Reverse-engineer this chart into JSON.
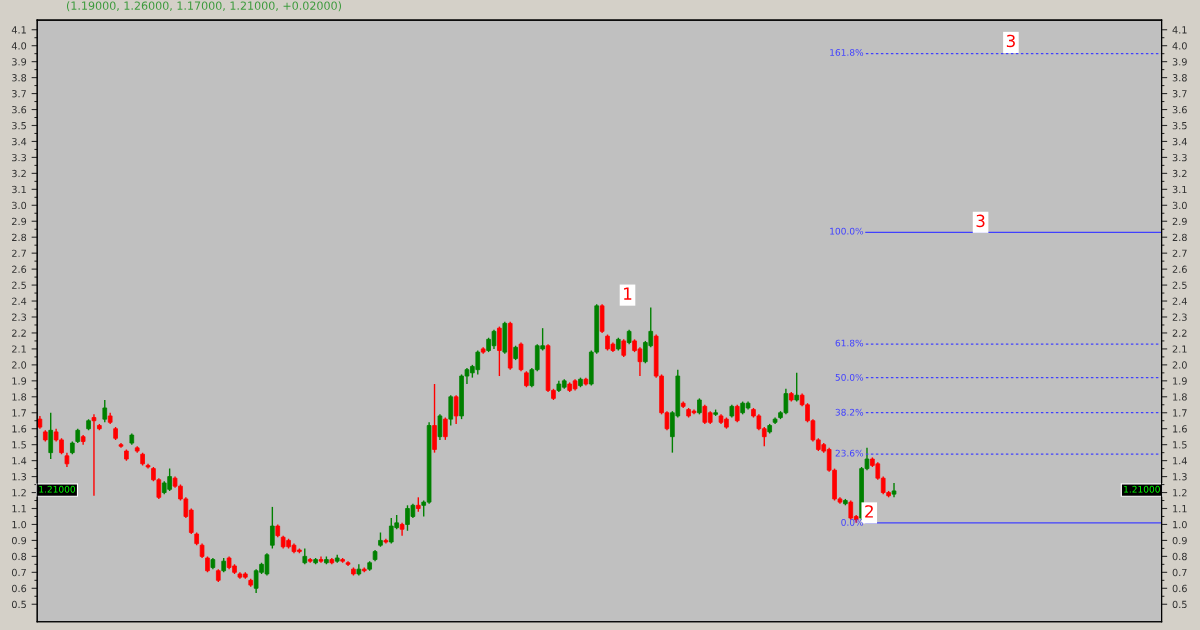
{
  "chart_data": {
    "type": "candlestick",
    "title": "(1.19000, 1.26000, 1.17000, 1.21000, +0.02000)",
    "categories": [
      null,
      null,
      null,
      null,
      null,
      null,
      null,
      null,
      null,
      null,
      null,
      null,
      null,
      null,
      null,
      null,
      null,
      null,
      null,
      null,
      null,
      null,
      null,
      null,
      null,
      null,
      null,
      null,
      null,
      null,
      null,
      null,
      null,
      null,
      null,
      null,
      null,
      null,
      null,
      null,
      null,
      null,
      null,
      null,
      null,
      null,
      null,
      null,
      null,
      null,
      null,
      null,
      null,
      null,
      null,
      null,
      null,
      null,
      null,
      null,
      null,
      null,
      null,
      null,
      null,
      null,
      null,
      null,
      null,
      null,
      null,
      null,
      null,
      null,
      null,
      null,
      null,
      null,
      null,
      null,
      null,
      null,
      null,
      null,
      null,
      null,
      null,
      null,
      null,
      null,
      null,
      null,
      null,
      null,
      null,
      null,
      null,
      null,
      null,
      null,
      null,
      null,
      null,
      null,
      null,
      null,
      null,
      null,
      null,
      null,
      null,
      null,
      null,
      null,
      null,
      null,
      null,
      null,
      null,
      null,
      null,
      null,
      null,
      null,
      null,
      null,
      null,
      null,
      null,
      null,
      null,
      null,
      null,
      null,
      null,
      null,
      null,
      null,
      null,
      null,
      null,
      null,
      null,
      null,
      null,
      null,
      null,
      null,
      null,
      null,
      null,
      null,
      null,
      null,
      null,
      null,
      null,
      null,
      null,
      null,
      null,
      null,
      null,
      null,
      null,
      null,
      null,
      null,
      null,
      null,
      null,
      null,
      null,
      null,
      null,
      null,
      null,
      null,
      null,
      null,
      null,
      null,
      null,
      null,
      null,
      null,
      null,
      null,
      null,
      null,
      null,
      null,
      null,
      null,
      null,
      null,
      null,
      null,
      null,
      null,
      null,
      null,
      null,
      null,
      null,
      null,
      null,
      null
    ],
    "ohlc": [
      [
        1.66,
        1.68,
        1.6,
        1.61
      ],
      [
        1.58,
        1.59,
        1.52,
        1.53
      ],
      [
        1.45,
        1.7,
        1.41,
        1.59
      ],
      [
        1.58,
        1.6,
        1.52,
        1.53
      ],
      [
        1.53,
        1.54,
        1.44,
        1.45
      ],
      [
        1.43,
        1.45,
        1.36,
        1.38
      ],
      [
        1.45,
        1.52,
        1.44,
        1.51
      ],
      [
        1.52,
        1.6,
        1.51,
        1.59
      ],
      [
        1.55,
        1.56,
        1.5,
        1.52
      ],
      [
        1.6,
        1.66,
        1.59,
        1.65
      ],
      [
        1.67,
        1.69,
        1.18,
        1.65
      ],
      [
        1.62,
        1.63,
        1.59,
        1.6
      ],
      [
        1.66,
        1.78,
        1.64,
        1.73
      ],
      [
        1.68,
        1.7,
        1.63,
        1.64
      ],
      [
        1.6,
        1.61,
        1.53,
        1.54
      ],
      [
        1.5,
        1.51,
        1.48,
        1.49
      ],
      [
        1.46,
        1.47,
        1.4,
        1.41
      ],
      [
        1.51,
        1.57,
        1.5,
        1.56
      ],
      [
        1.48,
        1.49,
        1.45,
        1.46
      ],
      [
        1.44,
        1.45,
        1.37,
        1.38
      ],
      [
        1.37,
        1.38,
        1.35,
        1.36
      ],
      [
        1.35,
        1.36,
        1.27,
        1.28
      ],
      [
        1.28,
        1.29,
        1.16,
        1.17
      ],
      [
        1.2,
        1.27,
        1.19,
        1.26
      ],
      [
        1.22,
        1.35,
        1.21,
        1.3
      ],
      [
        1.29,
        1.3,
        1.23,
        1.24
      ],
      [
        1.24,
        1.25,
        1.15,
        1.16
      ],
      [
        1.16,
        1.17,
        1.04,
        1.05
      ],
      [
        1.09,
        1.1,
        0.94,
        0.95
      ],
      [
        0.94,
        0.95,
        0.87,
        0.88
      ],
      [
        0.87,
        0.88,
        0.79,
        0.8
      ],
      [
        0.79,
        0.8,
        0.7,
        0.71
      ],
      [
        0.73,
        0.79,
        0.72,
        0.78
      ],
      [
        0.71,
        0.72,
        0.64,
        0.65
      ],
      [
        0.71,
        0.79,
        0.7,
        0.77
      ],
      [
        0.79,
        0.8,
        0.72,
        0.73
      ],
      [
        0.74,
        0.75,
        0.69,
        0.7
      ],
      [
        0.69,
        0.7,
        0.66,
        0.67
      ],
      [
        0.69,
        0.7,
        0.66,
        0.67
      ],
      [
        0.65,
        0.66,
        0.61,
        0.62
      ],
      [
        0.6,
        0.72,
        0.57,
        0.71
      ],
      [
        0.7,
        0.76,
        0.69,
        0.75
      ],
      [
        0.69,
        0.82,
        0.68,
        0.81
      ],
      [
        0.87,
        1.11,
        0.85,
        0.99
      ],
      [
        0.99,
        1.0,
        0.92,
        0.93
      ],
      [
        0.92,
        0.93,
        0.85,
        0.86
      ],
      [
        0.9,
        0.91,
        0.85,
        0.86
      ],
      [
        0.87,
        0.88,
        0.82,
        0.83
      ],
      [
        0.84,
        0.85,
        0.82,
        0.83
      ],
      [
        0.76,
        0.85,
        0.75,
        0.8
      ],
      [
        0.78,
        0.79,
        0.76,
        0.77
      ],
      [
        0.76,
        0.79,
        0.75,
        0.78
      ],
      [
        0.78,
        0.8,
        0.76,
        0.77
      ],
      [
        0.76,
        0.8,
        0.75,
        0.78
      ],
      [
        0.78,
        0.79,
        0.75,
        0.76
      ],
      [
        0.77,
        0.81,
        0.76,
        0.79
      ],
      [
        0.78,
        0.79,
        0.76,
        0.77
      ],
      [
        0.76,
        0.77,
        0.74,
        0.75
      ],
      [
        0.72,
        0.73,
        0.68,
        0.69
      ],
      [
        0.69,
        0.75,
        0.68,
        0.72
      ],
      [
        0.72,
        0.73,
        0.7,
        0.71
      ],
      [
        0.72,
        0.77,
        0.71,
        0.76
      ],
      [
        0.78,
        0.84,
        0.77,
        0.83
      ],
      [
        0.87,
        0.95,
        0.86,
        0.9
      ],
      [
        0.9,
        0.91,
        0.88,
        0.89
      ],
      [
        0.89,
        1.04,
        0.88,
        0.99
      ],
      [
        0.98,
        1.06,
        0.97,
        1.01
      ],
      [
        1.0,
        1.01,
        0.93,
        0.97
      ],
      [
        1.0,
        1.12,
        0.96,
        1.1
      ],
      [
        1.05,
        1.13,
        1.04,
        1.12
      ],
      [
        1.12,
        1.17,
        1.08,
        1.1
      ],
      [
        1.12,
        1.15,
        1.05,
        1.14
      ],
      [
        1.14,
        1.64,
        1.13,
        1.62
      ],
      [
        1.62,
        1.88,
        1.45,
        1.47
      ],
      [
        1.55,
        1.69,
        1.53,
        1.68
      ],
      [
        1.66,
        1.67,
        1.53,
        1.55
      ],
      [
        1.66,
        1.81,
        1.62,
        1.8
      ],
      [
        1.8,
        1.81,
        1.63,
        1.68
      ],
      [
        1.68,
        1.94,
        1.66,
        1.93
      ],
      [
        1.93,
        1.98,
        1.88,
        1.97
      ],
      [
        1.95,
        2.0,
        1.92,
        1.99
      ],
      [
        1.97,
        2.09,
        1.94,
        2.08
      ],
      [
        2.1,
        2.11,
        2.07,
        2.08
      ],
      [
        2.09,
        2.17,
        2.08,
        2.16
      ],
      [
        2.12,
        2.22,
        2.1,
        2.21
      ],
      [
        2.23,
        2.24,
        1.93,
        2.09
      ],
      [
        2.08,
        2.27,
        2.07,
        2.26
      ],
      [
        2.26,
        2.27,
        1.97,
        1.98
      ],
      [
        2.04,
        2.12,
        2.03,
        2.11
      ],
      [
        2.13,
        2.14,
        1.96,
        1.97
      ],
      [
        1.95,
        1.96,
        1.86,
        1.87
      ],
      [
        1.87,
        1.98,
        1.86,
        1.97
      ],
      [
        1.97,
        2.13,
        1.96,
        2.12
      ],
      [
        2.1,
        2.23,
        2.09,
        2.12
      ],
      [
        2.12,
        2.13,
        1.83,
        1.84
      ],
      [
        1.84,
        1.85,
        1.78,
        1.79
      ],
      [
        1.84,
        1.9,
        1.83,
        1.88
      ],
      [
        1.86,
        1.91,
        1.85,
        1.9
      ],
      [
        1.88,
        1.89,
        1.83,
        1.84
      ],
      [
        1.9,
        1.91,
        1.84,
        1.85
      ],
      [
        1.87,
        1.92,
        1.86,
        1.91
      ],
      [
        1.91,
        1.92,
        1.87,
        1.88
      ],
      [
        1.88,
        2.09,
        1.87,
        2.08
      ],
      [
        2.08,
        2.38,
        2.07,
        2.37
      ],
      [
        2.37,
        2.38,
        2.2,
        2.21
      ],
      [
        2.18,
        2.19,
        2.09,
        2.1
      ],
      [
        2.13,
        2.14,
        2.08,
        2.09
      ],
      [
        2.1,
        2.17,
        2.09,
        2.16
      ],
      [
        2.15,
        2.16,
        2.05,
        2.06
      ],
      [
        2.14,
        2.22,
        2.13,
        2.21
      ],
      [
        2.15,
        2.16,
        2.08,
        2.09
      ],
      [
        2.1,
        2.11,
        1.93,
        2.02
      ],
      [
        2.02,
        2.15,
        2.01,
        2.14
      ],
      [
        2.12,
        2.36,
        2.11,
        2.21
      ],
      [
        2.18,
        2.19,
        1.92,
        1.93
      ],
      [
        1.93,
        1.94,
        1.69,
        1.7
      ],
      [
        1.7,
        1.71,
        1.59,
        1.6
      ],
      [
        1.55,
        1.71,
        1.45,
        1.7
      ],
      [
        1.68,
        1.97,
        1.67,
        1.93
      ],
      [
        1.76,
        1.77,
        1.73,
        1.74
      ],
      [
        1.72,
        1.73,
        1.67,
        1.68
      ],
      [
        1.71,
        1.72,
        1.69,
        1.7
      ],
      [
        1.7,
        1.79,
        1.69,
        1.78
      ],
      [
        1.74,
        1.75,
        1.63,
        1.64
      ],
      [
        1.7,
        1.71,
        1.63,
        1.64
      ],
      [
        1.69,
        1.72,
        1.68,
        1.7
      ],
      [
        1.68,
        1.69,
        1.63,
        1.64
      ],
      [
        1.66,
        1.67,
        1.6,
        1.61
      ],
      [
        1.68,
        1.75,
        1.67,
        1.74
      ],
      [
        1.74,
        1.75,
        1.64,
        1.65
      ],
      [
        1.7,
        1.77,
        1.69,
        1.76
      ],
      [
        1.73,
        1.77,
        1.72,
        1.76
      ],
      [
        1.72,
        1.73,
        1.67,
        1.68
      ],
      [
        1.68,
        1.69,
        1.59,
        1.6
      ],
      [
        1.6,
        1.61,
        1.49,
        1.55
      ],
      [
        1.58,
        1.63,
        1.57,
        1.62
      ],
      [
        1.64,
        1.67,
        1.63,
        1.66
      ],
      [
        1.67,
        1.71,
        1.66,
        1.7
      ],
      [
        1.7,
        1.85,
        1.69,
        1.82
      ],
      [
        1.82,
        1.83,
        1.77,
        1.78
      ],
      [
        1.78,
        1.95,
        1.77,
        1.81
      ],
      [
        1.81,
        1.82,
        1.74,
        1.75
      ],
      [
        1.75,
        1.76,
        1.64,
        1.65
      ],
      [
        1.65,
        1.66,
        1.52,
        1.53
      ],
      [
        1.53,
        1.54,
        1.46,
        1.47
      ],
      [
        1.5,
        1.51,
        1.45,
        1.46
      ],
      [
        1.47,
        1.48,
        1.33,
        1.34
      ],
      [
        1.34,
        1.35,
        1.15,
        1.16
      ],
      [
        1.16,
        1.17,
        1.13,
        1.14
      ],
      [
        1.13,
        1.16,
        1.12,
        1.15
      ],
      [
        1.14,
        1.15,
        1.03,
        1.04
      ],
      [
        1.05,
        1.06,
        1.01,
        1.03
      ],
      [
        1.04,
        1.36,
        1.03,
        1.35
      ],
      [
        1.35,
        1.48,
        1.34,
        1.41
      ],
      [
        1.41,
        1.42,
        1.36,
        1.37
      ],
      [
        1.38,
        1.39,
        1.28,
        1.29
      ],
      [
        1.29,
        1.3,
        1.19,
        1.2
      ],
      [
        1.2,
        1.21,
        1.17,
        1.18
      ],
      [
        1.19,
        1.26,
        1.17,
        1.21
      ],
      null,
      null,
      null,
      null,
      null,
      null,
      null,
      null,
      null,
      null,
      null,
      null,
      null,
      null,
      null,
      null,
      null,
      null,
      null,
      null,
      null,
      null,
      null,
      null,
      null,
      null,
      null,
      null,
      null,
      null,
      null,
      null,
      null,
      null,
      null,
      null,
      null,
      null,
      null,
      null,
      null,
      null,
      null,
      null,
      null,
      null,
      null,
      null,
      null
    ],
    "colors": [
      "#ff0000",
      "#ff0000",
      "#008000",
      "#ff0000",
      "#ff0000",
      "#ff0000",
      "#008000",
      "#008000",
      "#ff0000",
      "#008000",
      "#ff0000",
      "#ff0000",
      "#008000",
      "#ff0000",
      "#ff0000",
      "#ff0000",
      "#ff0000",
      "#008000",
      "#ff0000",
      "#ff0000",
      "#ff0000",
      "#ff0000",
      "#ff0000",
      "#008000",
      "#008000",
      "#ff0000",
      "#ff0000",
      "#ff0000",
      "#ff0000",
      "#ff0000",
      "#ff0000",
      "#ff0000",
      "#008000",
      "#ff0000",
      "#008000",
      "#ff0000",
      "#ff0000",
      "#ff0000",
      "#ff0000",
      "#ff0000",
      "#008000",
      "#008000",
      "#008000",
      "#008000",
      "#ff0000",
      "#ff0000",
      "#ff0000",
      "#ff0000",
      "#ff0000",
      "#008000",
      "#ff0000",
      "#008000",
      "#ff0000",
      "#008000",
      "#ff0000",
      "#008000",
      "#ff0000",
      "#ff0000",
      "#ff0000",
      "#008000",
      "#ff0000",
      "#008000",
      "#008000",
      "#008000",
      "#ff0000",
      "#008000",
      "#008000",
      "#ff0000",
      "#008000",
      "#008000",
      "#ff0000",
      "#008000",
      "#008000",
      "#ff0000",
      "#008000",
      "#ff0000",
      "#008000",
      "#ff0000",
      "#008000",
      "#008000",
      "#008000",
      "#008000",
      "#ff0000",
      "#008000",
      "#008000",
      "#ff0000",
      "#008000",
      "#ff0000",
      "#008000",
      "#ff0000",
      "#ff0000",
      "#008000",
      "#008000",
      "#008000",
      "#ff0000",
      "#ff0000",
      "#008000",
      "#008000",
      "#ff0000",
      "#ff0000",
      "#008000",
      "#ff0000",
      "#008000",
      "#008000",
      "#ff0000",
      "#ff0000",
      "#ff0000",
      "#008000",
      "#ff0000",
      "#008000",
      "#ff0000",
      "#ff0000",
      "#008000",
      "#008000",
      "#ff0000",
      "#ff0000",
      "#ff0000",
      "#008000",
      "#008000",
      "#ff0000",
      "#ff0000",
      "#ff0000",
      "#008000",
      "#ff0000",
      "#ff0000",
      "#008000",
      "#ff0000",
      "#ff0000",
      "#008000",
      "#ff0000",
      "#008000",
      "#008000",
      "#ff0000",
      "#ff0000",
      "#ff0000",
      "#008000",
      "#008000",
      "#008000",
      "#008000",
      "#ff0000",
      "#008000",
      "#ff0000",
      "#ff0000",
      "#ff0000",
      "#ff0000",
      "#ff0000",
      "#ff0000",
      "#ff0000",
      "#ff0000",
      "#008000",
      "#ff0000",
      "#ff0000",
      "#008000",
      "#008000",
      "#ff0000",
      "#ff0000",
      "#ff0000",
      "#ff0000",
      "#008000",
      null,
      null,
      null,
      null,
      null,
      null,
      null,
      null,
      null,
      null,
      null,
      null,
      null,
      null,
      null,
      null,
      null,
      null,
      null,
      null,
      null,
      null,
      null,
      null,
      null,
      null,
      null,
      null,
      null,
      null,
      null,
      null,
      null,
      null,
      null,
      null,
      null,
      null,
      null,
      null,
      null,
      null,
      null,
      null,
      null,
      null,
      null,
      null,
      null
    ],
    "ylim": [
      0.39,
      4.16
    ],
    "yticks": [
      0.5,
      0.6,
      0.7,
      0.8,
      0.9,
      {
        "value": 1.0,
        "label": "1.0"
      },
      1.1,
      1.2,
      1.3,
      1.4,
      1.5,
      1.6,
      1.7,
      1.8,
      1.9,
      {
        "value": 2.0,
        "label": "2.0"
      },
      2.1,
      2.2,
      2.3,
      2.4,
      2.5,
      2.6,
      2.7,
      2.8,
      2.9,
      {
        "value": 3.0,
        "label": "3.0"
      },
      3.1,
      3.2,
      3.3,
      3.4,
      3.5,
      3.6,
      3.7,
      3.8,
      3.9,
      {
        "value": 4.0,
        "label": "4.0"
      },
      4.1
    ],
    "y2lim": [
      0.39,
      4.16
    ],
    "y2ticks": [
      0.5,
      0.6,
      0.7,
      0.8,
      0.9,
      {
        "value": 1.0,
        "label": "1.0"
      },
      1.1,
      1.2,
      1.3,
      1.4,
      1.5,
      1.6,
      1.7,
      1.8,
      1.9,
      {
        "value": 2.0,
        "label": "2.0"
      },
      2.1,
      2.2,
      2.3,
      2.4,
      2.5,
      2.6,
      2.7,
      2.8,
      2.9,
      {
        "value": 3.0,
        "label": "3.0"
      },
      3.1,
      3.2,
      3.3,
      3.4,
      3.5,
      3.6,
      3.7,
      3.8,
      3.9,
      {
        "value": 4.0,
        "label": "4.0"
      },
      4.1
    ],
    "tick_labels": "y",
    "grid": false,
    "ref_lines": [
      {
        "axis": "y",
        "value": 3.95,
        "color": "#4040ff",
        "line_style": "dotted"
      },
      {
        "axis": "y",
        "value": 2.83,
        "color": "#4040ff",
        "line_style": "solid"
      },
      {
        "axis": "y",
        "value": 2.13,
        "color": "#4040ff",
        "line_style": "dotted"
      },
      {
        "axis": "y",
        "value": 1.92,
        "color": "#4040ff",
        "line_style": "dotted"
      },
      {
        "axis": "y",
        "value": 1.7,
        "color": "#4040ff",
        "line_style": "dotted"
      },
      {
        "axis": "y",
        "value": 1.44,
        "color": "#4040ff",
        "line_style": "dotted"
      },
      {
        "axis": "y",
        "value": 1.01,
        "color": "#4040ff",
        "line_style": "solid"
      }
    ],
    "annotations": [
      "1",
      "2",
      "3",
      "3",
      "161.8%",
      "100.0%",
      "61.8%",
      "50.0%",
      "38.2%",
      "23.6%",
      "0.0%",
      "1.21000"
    ]
  }
}
